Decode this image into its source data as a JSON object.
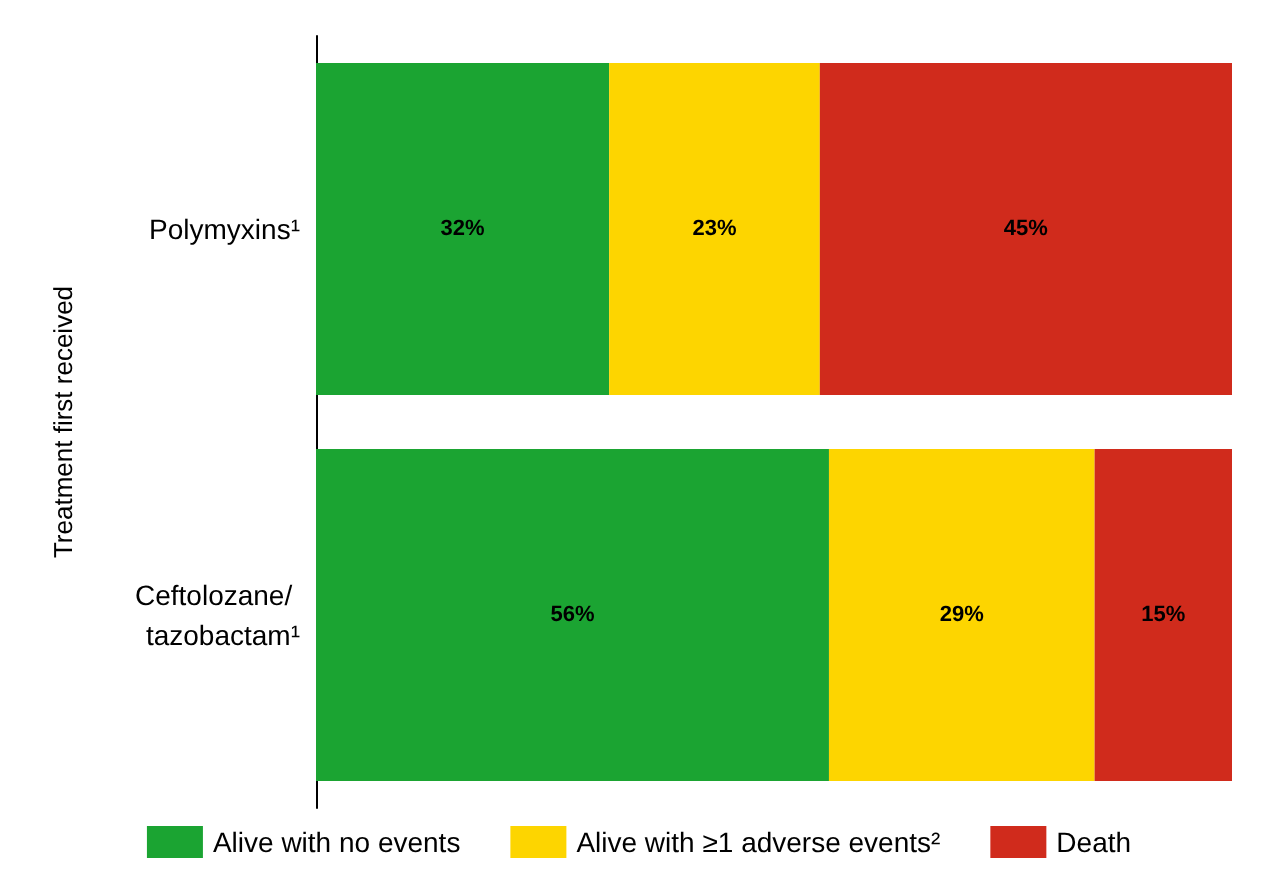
{
  "chart_data": {
    "type": "bar",
    "orientation": "horizontal",
    "stacked": true,
    "ylabel": "Treatment first received",
    "categories": [
      "Polymyxins¹",
      "Ceftolozane/ tazobactam¹"
    ],
    "series": [
      {
        "name": "Alive with no events",
        "color": "#1ba432",
        "values": [
          32,
          56
        ],
        "value_labels": [
          "32%",
          "56%"
        ]
      },
      {
        "name": "Alive with ≥1 adverse events²",
        "color": "#fdd500",
        "values": [
          23,
          29
        ],
        "value_labels": [
          "23%",
          "29%"
        ]
      },
      {
        "name": "Death",
        "color": "#d02b1c",
        "values": [
          45,
          15
        ],
        "value_labels": [
          "45%",
          "15%"
        ]
      }
    ],
    "legend": "bottom",
    "grid": false
  }
}
